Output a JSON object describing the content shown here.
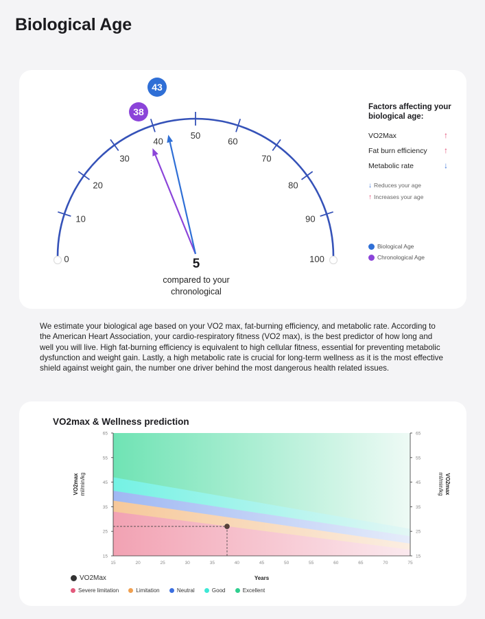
{
  "page": {
    "title": "Biological Age"
  },
  "gauge": {
    "scale_labels": [
      "0",
      "10",
      "20",
      "30",
      "40",
      "50",
      "60",
      "70",
      "80",
      "90",
      "100"
    ],
    "min": 0,
    "max": 100,
    "biological_age": 43,
    "chronological_age": 38,
    "biological_badge": "43",
    "chronological_badge": "38",
    "difference_value": "5",
    "difference_caption_line1": "compared to your",
    "difference_caption_line2": "chronological",
    "colors": {
      "biological": "#2f6fd6",
      "chronological": "#8b44d9",
      "arc": "#3552b8"
    }
  },
  "factors": {
    "title": "Factors affecting your biological age:",
    "items": [
      {
        "label": "VO2Max",
        "direction": "↑",
        "color": "#e0456f"
      },
      {
        "label": "Fat burn efficiency",
        "direction": "↑",
        "color": "#e0456f"
      },
      {
        "label": "Metabolic rate",
        "direction": "↓",
        "color": "#3a74d8"
      }
    ],
    "reduces_note": "Reduces your age",
    "increases_note": "Increases your age",
    "reduces_arrow": "↓",
    "increases_arrow": "↑",
    "legend_biological": "Biological Age",
    "legend_chronological": "Chronological Age"
  },
  "description": "We estimate your biological age based on your VO2 max, fat-burning efficiency, and metabolic rate. According to the American Heart Association, your cardio-respiratory fitness (VO2 max), is the best predictor of how long and well you will live. High fat-burning efficiency is equivalent to high cellular fitness, essential for preventing metabolic dysfunction and weight gain. Lastly, a high metabolic rate is crucial for long-term wellness as it is the most effective shield against weight gain, the number one driver behind the most dangerous health related issues.",
  "chart_data": {
    "type": "area",
    "title": "VO2max & Wellness prediction",
    "xlabel": "Years",
    "ylabel_line1": "VO2max",
    "ylabel_line2": "ml/min/kg",
    "xlim": [
      15,
      75
    ],
    "ylim": [
      15,
      65
    ],
    "x_ticks": [
      15,
      20,
      25,
      30,
      35,
      40,
      45,
      50,
      55,
      60,
      65,
      70,
      75
    ],
    "y_ticks": [
      15,
      25,
      35,
      45,
      55,
      65
    ],
    "x_tick_labels": [
      "15",
      "20",
      "25",
      "30",
      "35",
      "40",
      "45",
      "50",
      "55",
      "60",
      "65",
      "70",
      "75"
    ],
    "y_tick_labels": [
      "15",
      "25",
      "35",
      "45",
      "55",
      "65"
    ],
    "series": [
      {
        "name": "Severe limitation",
        "color": "#e35a7c",
        "upper": [
          [
            15,
            33
          ],
          [
            75,
            17.5
          ]
        ]
      },
      {
        "name": "Limitation",
        "color": "#f0a050",
        "upper": [
          [
            15,
            37.5
          ],
          [
            75,
            20
          ]
        ]
      },
      {
        "name": "Neutral",
        "color": "#3b6fe0",
        "upper": [
          [
            15,
            41.5
          ],
          [
            75,
            23
          ]
        ]
      },
      {
        "name": "Good",
        "color": "#3ee8d6",
        "upper": [
          [
            15,
            47
          ],
          [
            75,
            26
          ]
        ]
      },
      {
        "name": "Excellent",
        "color": "#2fcf8f",
        "upper": [
          [
            15,
            65
          ],
          [
            75,
            65
          ]
        ]
      }
    ],
    "point": {
      "name": "VO2Max",
      "x": 38,
      "y": 27
    }
  }
}
